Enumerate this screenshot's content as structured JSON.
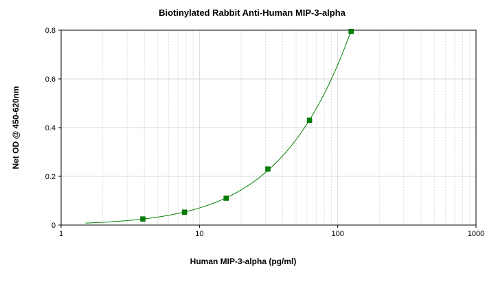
{
  "chart_data": {
    "type": "scatter",
    "title": "Biotinylated Rabbit Anti-Human MIP-3-alpha",
    "xlabel": "Human MIP-3-alpha (pg/ml)",
    "ylabel": "Net OD @ 450-620nm",
    "x_scale": "log",
    "xlim": [
      1,
      1000
    ],
    "ylim": [
      0,
      0.8
    ],
    "x_ticks": [
      1,
      10,
      100,
      1000
    ],
    "x_tick_labels": [
      "1",
      "10",
      "100",
      "1000"
    ],
    "y_ticks": [
      0,
      0.2,
      0.4,
      0.6,
      0.8
    ],
    "y_tick_labels": [
      "0",
      "0.2",
      "0.4",
      "0.6",
      "0.8"
    ],
    "grid": true,
    "marker_color": "#008000",
    "curve_color": "#008000",
    "grid_color": "#d9d9d9",
    "fit_curve": true,
    "fit_x_range": [
      1.5,
      128
    ],
    "series": [
      {
        "x": [
          3.9,
          7.8,
          15.6,
          31.25,
          62.5,
          125
        ],
        "y": [
          0.025,
          0.053,
          0.11,
          0.23,
          0.43,
          0.795
        ]
      }
    ]
  }
}
